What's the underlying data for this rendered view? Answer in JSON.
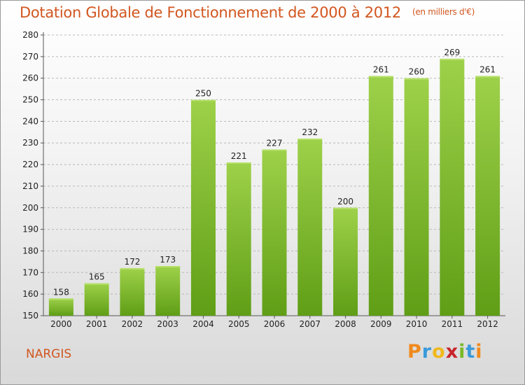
{
  "header": {
    "title": "Dotation Globale de Fonctionnement de 2000 à 2012",
    "unit": "(en milliers d'€)"
  },
  "footer": {
    "city": "NARGIS",
    "logo": "Proxiti"
  },
  "colors": {
    "title": "#d2561f",
    "bar_top": "#9ed14a",
    "bar_bottom": "#5f9e16",
    "grid": "#b8b8b8"
  },
  "chart_data": {
    "type": "bar",
    "title": "Dotation Globale de Fonctionnement de 2000 à 2012",
    "subtitle": "(en milliers d'€)",
    "categories": [
      "2000",
      "2001",
      "2002",
      "2003",
      "2004",
      "2005",
      "2006",
      "2007",
      "2008",
      "2009",
      "2010",
      "2011",
      "2012"
    ],
    "values": [
      158,
      165,
      172,
      173,
      250,
      221,
      227,
      232,
      200,
      261,
      260,
      269,
      261
    ],
    "ylim": [
      150,
      280
    ],
    "yticks": [
      150,
      160,
      170,
      180,
      190,
      200,
      210,
      220,
      230,
      240,
      250,
      260,
      270,
      280
    ],
    "grid": "horizontal dashed",
    "data_labels": true
  }
}
